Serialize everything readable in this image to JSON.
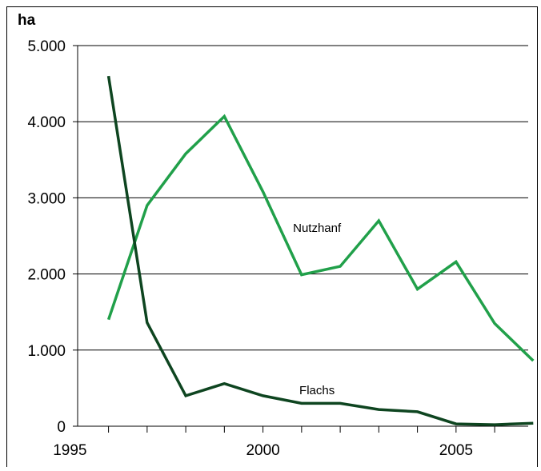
{
  "chart_data": {
    "type": "line",
    "title": "",
    "xlabel": "",
    "ylabel": "ha",
    "ylim": [
      0,
      5000
    ],
    "xlim": [
      1995.2,
      2007.2
    ],
    "yticks": [
      0,
      1000,
      2000,
      3000,
      4000,
      5000
    ],
    "ytick_labels": [
      "0",
      "1.000",
      "2.000",
      "3.000",
      "4.000",
      "5.000"
    ],
    "xticks": [
      1995,
      2000,
      2005
    ],
    "xtick_labels": [
      "1995",
      "2000",
      "2005"
    ],
    "grid": "horizontal",
    "legend": "inline labels",
    "x": [
      1996,
      1997,
      1998,
      1999,
      2000,
      2001,
      2002,
      2003,
      2004,
      2005,
      2006,
      2007
    ],
    "series": [
      {
        "name": "Nutzhanf",
        "color": "#21a04a",
        "values": [
          1400,
          2900,
          3580,
          4070,
          3080,
          1990,
          2100,
          2700,
          1800,
          2160,
          1350,
          860
        ]
      },
      {
        "name": "Flachs",
        "color": "#0e4520",
        "values": [
          4600,
          1360,
          400,
          560,
          400,
          300,
          300,
          220,
          190,
          30,
          20,
          40
        ]
      }
    ]
  }
}
